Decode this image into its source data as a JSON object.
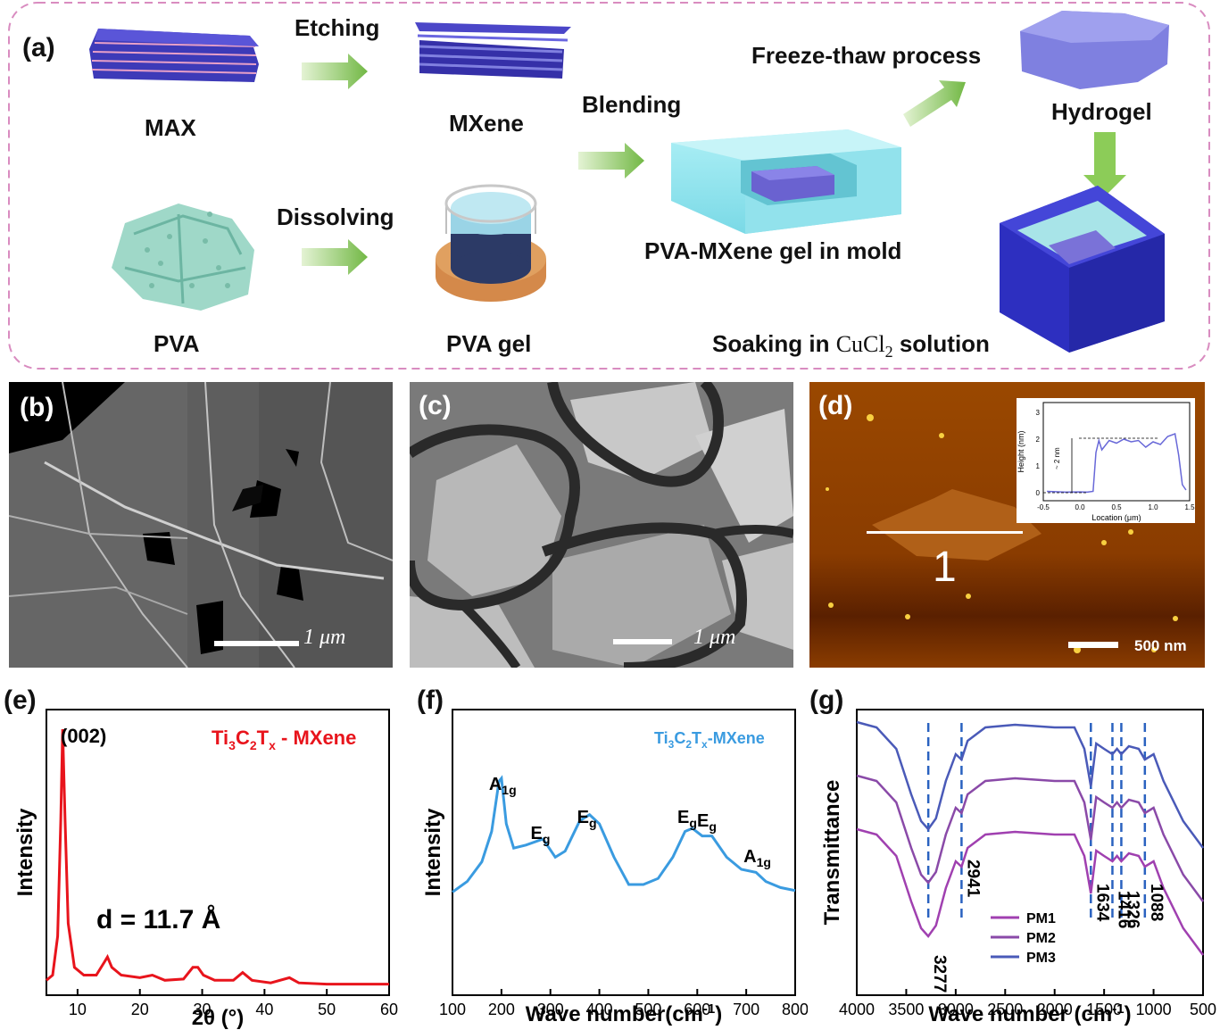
{
  "panel_a": {
    "letter": "(a)",
    "max": "MAX",
    "etching": "Etching",
    "mxene": "MXene",
    "blending": "Blending",
    "freeze_thaw": "Freeze-thaw process",
    "hydrogel": "Hydrogel",
    "pva": "PVA",
    "dissolving": "Dissolving",
    "pva_gel": "PVA gel",
    "mold": "PVA-MXene gel in mold",
    "soaking_pre": "Soaking in ",
    "soaking_chem": "CuCl",
    "soaking_sub": "2",
    "soaking_post": " solution"
  },
  "panel_b": {
    "letter": "(b)",
    "scale": "1 μm"
  },
  "panel_c": {
    "letter": "(c)",
    "scale": "1 μm"
  },
  "panel_d": {
    "letter": "(d)",
    "marker": "1",
    "scale": "500 nm",
    "inset": {
      "xlabel": "Location (μm)",
      "ylabel": "Height (nm)",
      "annotation": "~ 2 nm",
      "xticks": [
        "-0.5",
        "0.0",
        "0.5",
        "1.0",
        "1.5"
      ],
      "yticks": [
        "0",
        "1",
        "2",
        "3"
      ]
    }
  },
  "colors": {
    "dash_border": "#d98cc0",
    "xrd": "#e8141c",
    "raman": "#3a9be0",
    "pm1": "#a040b0",
    "pm2": "#8a4aa8",
    "pm3": "#4a5ab8",
    "arrow": "#7ac043",
    "tick_line": "#2a62c0"
  },
  "chart_data": [
    {
      "panel": "(e)",
      "type": "line",
      "xlabel": "2θ (°)",
      "ylabel": "Intensity",
      "legend": "Ti3C2Tx - MXene",
      "xlim": [
        5,
        60
      ],
      "xticks": [
        "10",
        "20",
        "30",
        "40",
        "50",
        "60"
      ],
      "annotations": [
        "(002)",
        "d = 11.7 Å"
      ],
      "x": [
        5,
        6,
        6.8,
        7.3,
        7.6,
        8.0,
        8.5,
        9.5,
        11,
        13,
        14.3,
        14.8,
        15.5,
        17,
        20,
        22,
        24,
        27,
        28.5,
        29.3,
        30.2,
        32,
        35,
        36.5,
        38,
        41,
        44,
        45.5,
        50,
        55,
        60
      ],
      "y": [
        0.03,
        0.05,
        0.2,
        0.65,
        1.0,
        0.65,
        0.25,
        0.08,
        0.05,
        0.05,
        0.1,
        0.12,
        0.08,
        0.05,
        0.04,
        0.05,
        0.03,
        0.035,
        0.08,
        0.08,
        0.05,
        0.03,
        0.03,
        0.06,
        0.03,
        0.02,
        0.04,
        0.02,
        0.015,
        0.015,
        0.015
      ]
    },
    {
      "panel": "(f)",
      "type": "line",
      "xlabel": "Wave number(cm-1)",
      "ylabel": "Intensity",
      "legend": "Ti3C2Tx-MXene",
      "xlim": [
        100,
        800
      ],
      "xticks": [
        "100",
        "200",
        "300",
        "400",
        "500",
        "600",
        "700",
        "800"
      ],
      "peak_labels": [
        {
          "base": "A",
          "sub": "1g",
          "x": 200
        },
        {
          "base": "E",
          "sub": "g",
          "x": 285
        },
        {
          "base": "E",
          "sub": "g",
          "x": 380
        },
        {
          "base": "E",
          "sub": "g",
          "x": 585
        },
        {
          "base": "E",
          "sub": "g",
          "x": 625
        },
        {
          "base": "A",
          "sub": "1g",
          "x": 720
        }
      ],
      "x": [
        100,
        130,
        160,
        180,
        195,
        200,
        210,
        225,
        250,
        285,
        310,
        330,
        360,
        380,
        400,
        430,
        460,
        490,
        520,
        550,
        575,
        590,
        610,
        630,
        660,
        690,
        720,
        740,
        770,
        800
      ],
      "y": [
        0.15,
        0.22,
        0.35,
        0.55,
        0.88,
        0.9,
        0.6,
        0.44,
        0.46,
        0.5,
        0.38,
        0.42,
        0.62,
        0.66,
        0.6,
        0.38,
        0.2,
        0.2,
        0.24,
        0.38,
        0.55,
        0.57,
        0.52,
        0.52,
        0.38,
        0.3,
        0.28,
        0.22,
        0.18,
        0.16
      ]
    },
    {
      "panel": "(g)",
      "type": "line",
      "xlabel": "Wave number (cm-1)",
      "ylabel": "Transmittance",
      "xlim": [
        4000,
        500
      ],
      "xticks": [
        "4000",
        "3500",
        "3000",
        "2500",
        "2000",
        "1500",
        "1000",
        "500"
      ],
      "marked_peaks": [
        "3277",
        "2941",
        "1634",
        "1416",
        "1326",
        "1088"
      ],
      "peak_positions": [
        3277,
        2941,
        1634,
        1416,
        1326,
        1088
      ],
      "series": [
        {
          "name": "PM1",
          "offset": 0.0
        },
        {
          "name": "PM2",
          "offset": 0.2
        },
        {
          "name": "PM3",
          "offset": 0.4
        }
      ],
      "x": [
        4000,
        3800,
        3600,
        3450,
        3350,
        3277,
        3200,
        3100,
        3000,
        2941,
        2880,
        2700,
        2400,
        2000,
        1800,
        1700,
        1634,
        1580,
        1500,
        1416,
        1370,
        1326,
        1250,
        1150,
        1088,
        1000,
        900,
        700,
        500
      ],
      "y": [
        0.52,
        0.5,
        0.42,
        0.25,
        0.15,
        0.12,
        0.16,
        0.3,
        0.4,
        0.38,
        0.45,
        0.5,
        0.51,
        0.5,
        0.5,
        0.42,
        0.28,
        0.44,
        0.42,
        0.4,
        0.42,
        0.4,
        0.43,
        0.42,
        0.38,
        0.4,
        0.3,
        0.15,
        0.05
      ]
    }
  ]
}
